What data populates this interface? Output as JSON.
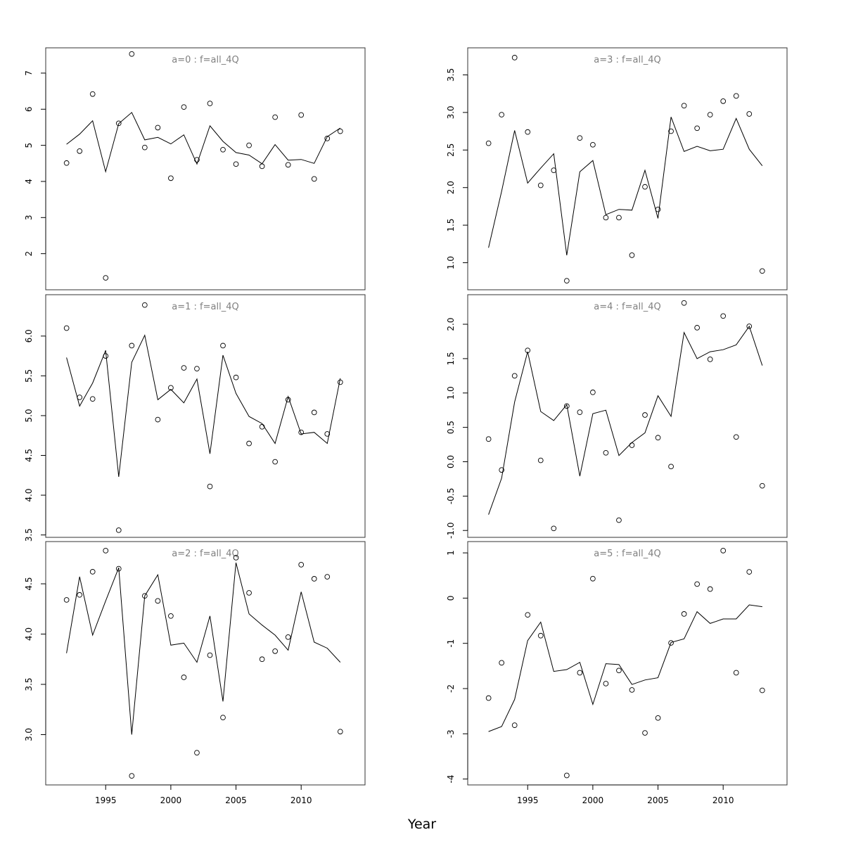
{
  "figure": {
    "xlabel": "Year"
  },
  "chart_data": [
    {
      "type": "scatter",
      "title": "a=0  :  f=all_4Q",
      "x": [
        1992,
        1993,
        1994,
        1995,
        1996,
        1997,
        1998,
        1999,
        2000,
        2001,
        2002,
        2003,
        2004,
        2005,
        2006,
        2007,
        2008,
        2009,
        2010,
        2011,
        2012,
        2013
      ],
      "observed": [
        4.51,
        4.84,
        6.42,
        1.33,
        5.61,
        7.53,
        4.94,
        5.49,
        4.09,
        6.06,
        4.6,
        6.16,
        4.88,
        4.48,
        5.0,
        4.42,
        5.78,
        4.46,
        5.84,
        4.07,
        5.19,
        5.39
      ],
      "fitted": [
        5.03,
        5.31,
        5.68,
        4.27,
        5.6,
        5.91,
        5.15,
        5.22,
        5.04,
        5.29,
        4.48,
        5.54,
        5.11,
        4.8,
        4.73,
        4.49,
        5.02,
        4.59,
        4.61,
        4.5,
        5.24,
        5.48
      ],
      "xlim": [
        1990.4,
        2014.9
      ],
      "ylim": [
        1.0,
        7.7
      ],
      "yticks": [
        "2",
        "3",
        "4",
        "5",
        "6",
        "7"
      ]
    },
    {
      "type": "scatter",
      "title": "a=1  :  f=all_4Q",
      "x": [
        1992,
        1993,
        1994,
        1995,
        1996,
        1997,
        1998,
        1999,
        2000,
        2001,
        2002,
        2003,
        2004,
        2005,
        2006,
        2007,
        2008,
        2009,
        2010,
        2011,
        2012,
        2013
      ],
      "observed": [
        6.1,
        5.23,
        5.21,
        5.75,
        3.56,
        5.88,
        6.39,
        4.95,
        5.35,
        5.6,
        5.59,
        4.11,
        5.88,
        5.48,
        4.65,
        4.86,
        4.42,
        5.2,
        4.79,
        5.04,
        4.77,
        5.42
      ],
      "fitted": [
        5.73,
        5.12,
        5.41,
        5.82,
        4.23,
        5.67,
        6.01,
        5.2,
        5.33,
        5.16,
        5.46,
        4.52,
        5.76,
        5.28,
        4.99,
        4.9,
        4.65,
        5.24,
        4.77,
        4.79,
        4.65,
        5.47
      ],
      "xlim": [
        1990.4,
        2014.9
      ],
      "ylim": [
        3.47,
        6.52
      ],
      "yticks": [
        "3.5",
        "4.0",
        "4.5",
        "5.0",
        "5.5",
        "6.0"
      ]
    },
    {
      "type": "scatter",
      "title": "a=2  :  f=all_4Q",
      "x": [
        1992,
        1993,
        1994,
        1995,
        1996,
        1997,
        1998,
        1999,
        2000,
        2001,
        2002,
        2003,
        2004,
        2005,
        2006,
        2007,
        2008,
        2009,
        2010,
        2011,
        2012,
        2013
      ],
      "observed": [
        4.34,
        4.39,
        4.62,
        4.83,
        4.65,
        2.59,
        4.38,
        4.33,
        4.18,
        3.57,
        2.82,
        3.79,
        3.17,
        4.76,
        4.41,
        3.75,
        3.83,
        3.97,
        4.69,
        4.55,
        4.57,
        3.03
      ],
      "fitted": [
        3.81,
        4.57,
        3.99,
        4.33,
        4.66,
        3.0,
        4.38,
        4.59,
        3.89,
        3.91,
        3.72,
        4.18,
        3.33,
        4.71,
        4.2,
        4.09,
        3.99,
        3.84,
        4.42,
        3.92,
        3.86,
        3.72
      ],
      "xlim": [
        1990.4,
        2014.9
      ],
      "ylim": [
        2.5,
        4.92
      ],
      "yticks": [
        "3.0",
        "3.5",
        "4.0",
        "4.5"
      ]
    },
    {
      "type": "scatter",
      "title": "a=3  :  f=all_4Q",
      "x": [
        1992,
        1993,
        1994,
        1995,
        1996,
        1997,
        1998,
        1999,
        2000,
        2001,
        2002,
        2003,
        2004,
        2005,
        2006,
        2007,
        2008,
        2009,
        2010,
        2011,
        2012,
        2013
      ],
      "observed": [
        2.59,
        2.97,
        3.73,
        2.74,
        2.03,
        2.23,
        0.76,
        2.66,
        2.57,
        1.6,
        1.6,
        1.1,
        2.01,
        1.71,
        2.75,
        3.09,
        2.79,
        2.97,
        3.15,
        3.22,
        2.98,
        0.89
      ],
      "fitted": [
        1.2,
        1.95,
        2.76,
        2.06,
        2.26,
        2.45,
        1.1,
        2.21,
        2.36,
        1.64,
        1.71,
        1.7,
        2.23,
        1.59,
        2.94,
        2.48,
        2.55,
        2.49,
        2.51,
        2.92,
        2.51,
        2.29
      ],
      "xlim": [
        1990.4,
        2014.9
      ],
      "ylim": [
        0.64,
        3.86
      ],
      "yticks": [
        "1.0",
        "1.5",
        "2.0",
        "2.5",
        "3.0",
        "3.5"
      ]
    },
    {
      "type": "scatter",
      "title": "a=4  :  f=all_4Q",
      "x": [
        1992,
        1993,
        1994,
        1995,
        1996,
        1997,
        1998,
        1999,
        2000,
        2001,
        2002,
        2003,
        2004,
        2005,
        2006,
        2007,
        2008,
        2009,
        2010,
        2011,
        2012,
        2013
      ],
      "observed": [
        0.33,
        -0.12,
        1.25,
        1.62,
        0.02,
        -0.97,
        0.81,
        0.72,
        1.01,
        0.13,
        -0.85,
        0.24,
        0.68,
        0.35,
        -0.07,
        2.31,
        1.95,
        1.49,
        2.12,
        0.36,
        1.97,
        -0.35
      ],
      "fitted": [
        -0.77,
        -0.24,
        0.87,
        1.6,
        0.73,
        0.6,
        0.83,
        -0.21,
        0.7,
        0.75,
        0.09,
        0.28,
        0.42,
        0.96,
        0.66,
        1.88,
        1.5,
        1.6,
        1.63,
        1.7,
        1.97,
        1.4
      ],
      "xlim": [
        1990.4,
        2014.9
      ],
      "ylim": [
        -1.1,
        2.43
      ],
      "yticks": [
        "-1.0",
        "-0.5",
        "0.0",
        "0.5",
        "1.0",
        "1.5",
        "2.0"
      ]
    },
    {
      "type": "scatter",
      "title": "a=5  :  f=all_4Q",
      "x": [
        1992,
        1993,
        1994,
        1995,
        1996,
        1997,
        1998,
        1999,
        2000,
        2001,
        2002,
        2003,
        2004,
        2005,
        2006,
        2007,
        2008,
        2009,
        2010,
        2011,
        2012,
        2013
      ],
      "observed": [
        -2.21,
        -1.43,
        -2.81,
        -0.37,
        -0.83,
        -3.92,
        -1.65,
        0.43,
        -1.89,
        -1.6,
        -2.03,
        -2.98,
        -2.65,
        -0.99,
        -0.35,
        0.31,
        0.2,
        1.05,
        -1.65,
        0.58,
        -2.04
      ],
      "observed_x": [
        1992,
        1993,
        1994,
        1995,
        1996,
        1998,
        1999,
        2000,
        2001,
        2002,
        2003,
        2004,
        2005,
        2006,
        2007,
        2008,
        2009,
        2010,
        2011,
        2012,
        2013
      ],
      "fitted": [
        -2.95,
        -2.84,
        -2.24,
        -0.94,
        -0.53,
        -1.62,
        -1.58,
        -1.42,
        -2.35,
        -1.45,
        -1.47,
        -1.91,
        -1.81,
        -1.76,
        -0.98,
        -0.9,
        -0.3,
        -0.56,
        -0.46,
        -0.46,
        -0.15,
        -0.19
      ],
      "xlim": [
        1990.4,
        2014.9
      ],
      "ylim": [
        -4.13,
        1.25
      ],
      "yticks": [
        "-4",
        "-3",
        "-2",
        "-1",
        "0",
        "1"
      ]
    }
  ],
  "x_ticks": [
    "1995",
    "2000",
    "2005",
    "2010"
  ]
}
